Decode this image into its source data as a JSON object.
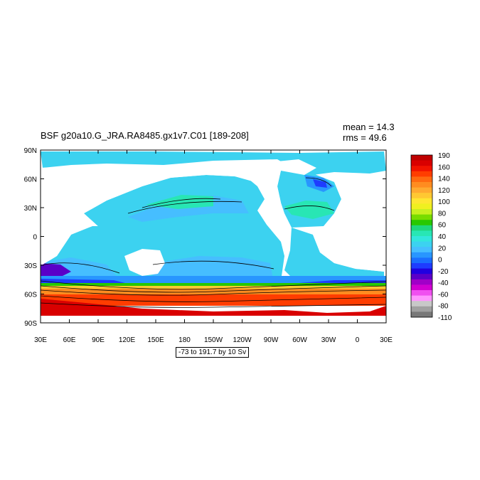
{
  "title": "BSF g20a10.G_JRA.RA8485.gx1v7.C01 [189-208]",
  "stats": {
    "mean": "mean = 14.3",
    "rms": "rms = 49.6"
  },
  "contour_info": "-73 to 191.7 by 10 Sv",
  "map": {
    "lat_labels": [
      "90N",
      "60N",
      "30N",
      "0",
      "30S",
      "60S",
      "90S"
    ],
    "lon_labels": [
      "30E",
      "60E",
      "90E",
      "120E",
      "150E",
      "180",
      "150W",
      "120W",
      "90W",
      "60W",
      "30W",
      "0",
      "30E"
    ],
    "lon_range": [
      30,
      390
    ],
    "lat_range": [
      -90,
      90
    ]
  },
  "colorbar": {
    "labels": [
      "190",
      "160",
      "140",
      "120",
      "100",
      "80",
      "60",
      "40",
      "20",
      "0",
      "-20",
      "-40",
      "-60",
      "-80",
      "-110"
    ],
    "colors": [
      "#bf0000",
      "#d90000",
      "#f21300",
      "#ff3d00",
      "#ff6a10",
      "#ff8c20",
      "#ffaa30",
      "#ffc832",
      "#ffe632",
      "#f0f020",
      "#c8f020",
      "#78dc00",
      "#28c800",
      "#1ed77d",
      "#28e6b4",
      "#32e6dc",
      "#3cd2f0",
      "#46beff",
      "#2896ff",
      "#1a6eff",
      "#1e3cff",
      "#2000e0",
      "#5a00c8",
      "#a000c8",
      "#d200d2",
      "#f050f0",
      "#ff96ff",
      "#c8c8c8",
      "#a0a0a0",
      "#787878"
    ]
  }
}
